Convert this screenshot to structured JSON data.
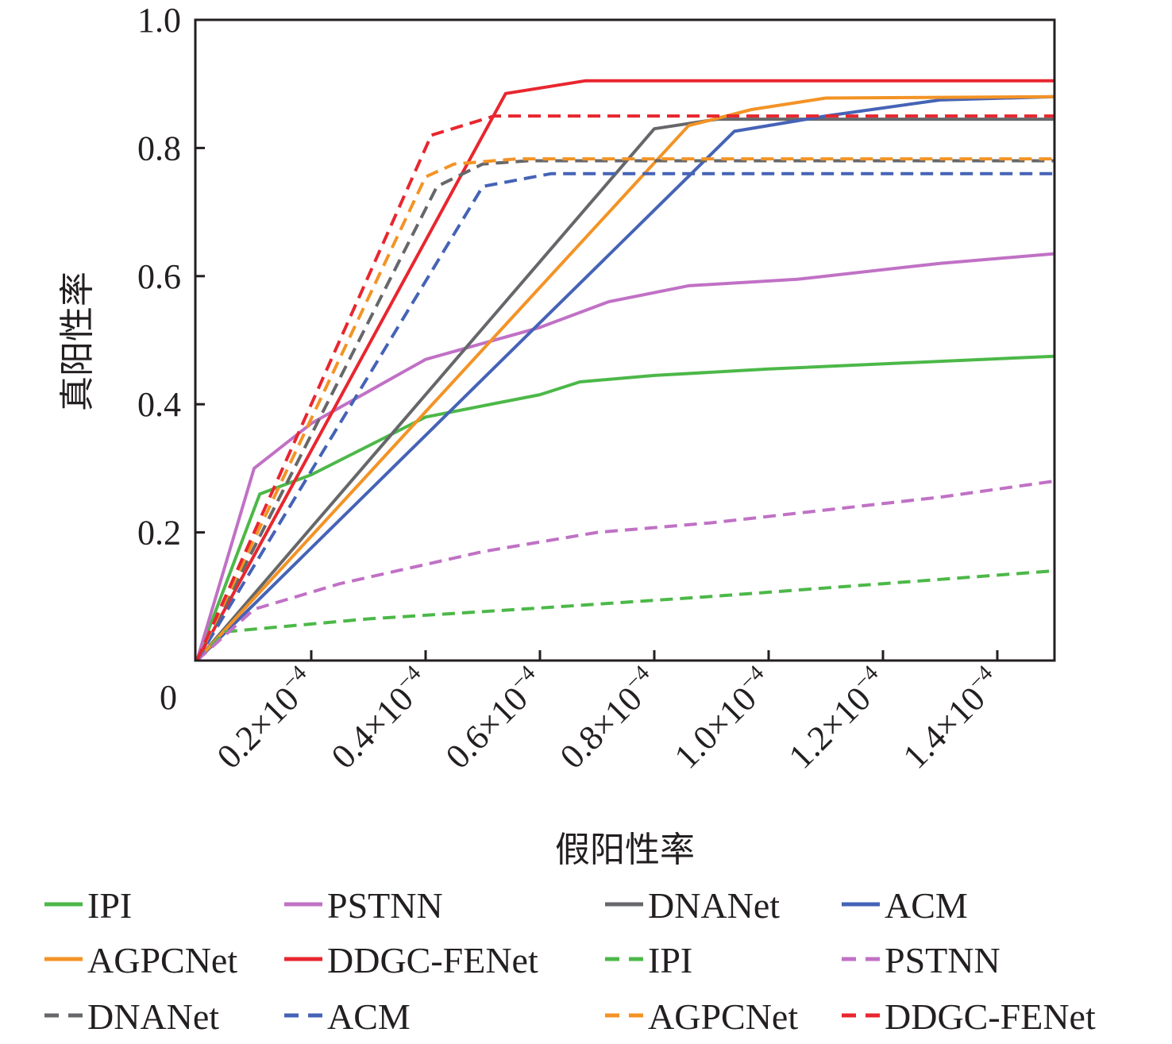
{
  "chart_data": {
    "type": "line",
    "title": "",
    "xlabel": "假阳性率",
    "ylabel": "真阳性率",
    "x_unit_note": "×10^-4",
    "xlim": [
      0,
      1.5
    ],
    "ylim": [
      0,
      1.0
    ],
    "grid": false,
    "legend_position": "bottom",
    "x_ticks": [
      {
        "value": 0.2,
        "label": "0.2×10",
        "exp": "−4"
      },
      {
        "value": 0.4,
        "label": "0.4×10",
        "exp": "−4"
      },
      {
        "value": 0.6,
        "label": "0.6×10",
        "exp": "−4"
      },
      {
        "value": 0.8,
        "label": "0.8×10",
        "exp": "−4"
      },
      {
        "value": 1.0,
        "label": "1.0×10",
        "exp": "−4"
      },
      {
        "value": 1.2,
        "label": "1.2×10",
        "exp": "−4"
      },
      {
        "value": 1.4,
        "label": "1.4×10",
        "exp": "−4"
      }
    ],
    "origin_label": "0",
    "y_ticks": [
      {
        "value": 0.2,
        "label": "0.2"
      },
      {
        "value": 0.4,
        "label": "0.4"
      },
      {
        "value": 0.6,
        "label": "0.6"
      },
      {
        "value": 0.8,
        "label": "0.8"
      },
      {
        "value": 1.0,
        "label": "1.0"
      }
    ],
    "series": [
      {
        "name": "IPI",
        "style": "solid",
        "color": "#4cb848",
        "points": [
          [
            0,
            0
          ],
          [
            0.11,
            0.26
          ],
          [
            0.2,
            0.29
          ],
          [
            0.4,
            0.38
          ],
          [
            0.6,
            0.415
          ],
          [
            0.67,
            0.435
          ],
          [
            0.8,
            0.445
          ],
          [
            1.0,
            0.455
          ],
          [
            1.25,
            0.465
          ],
          [
            1.5,
            0.475
          ]
        ]
      },
      {
        "name": "PSTNN",
        "style": "solid",
        "color": "#c071c5",
        "points": [
          [
            0,
            0
          ],
          [
            0.1,
            0.3
          ],
          [
            0.2,
            0.37
          ],
          [
            0.4,
            0.47
          ],
          [
            0.6,
            0.52
          ],
          [
            0.72,
            0.56
          ],
          [
            0.86,
            0.585
          ],
          [
            1.05,
            0.595
          ],
          [
            1.3,
            0.62
          ],
          [
            1.5,
            0.635
          ]
        ]
      },
      {
        "name": "DNANet",
        "style": "solid",
        "color": "#66676a",
        "points": [
          [
            0,
            0
          ],
          [
            0.8,
            0.83
          ],
          [
            0.91,
            0.845
          ],
          [
            1.5,
            0.845
          ]
        ]
      },
      {
        "name": "ACM",
        "style": "solid",
        "color": "#4563b6",
        "points": [
          [
            0,
            0
          ],
          [
            0.94,
            0.826
          ],
          [
            1.1,
            0.85
          ],
          [
            1.3,
            0.875
          ],
          [
            1.5,
            0.88
          ]
        ]
      },
      {
        "name": "AGPCNet",
        "style": "solid",
        "color": "#f39325",
        "points": [
          [
            0,
            0
          ],
          [
            0.86,
            0.835
          ],
          [
            0.97,
            0.86
          ],
          [
            1.1,
            0.878
          ],
          [
            1.5,
            0.88
          ]
        ]
      },
      {
        "name": "DDGC-FENet",
        "style": "solid",
        "color": "#e8262f",
        "points": [
          [
            0,
            0
          ],
          [
            0.54,
            0.885
          ],
          [
            0.68,
            0.905
          ],
          [
            1.5,
            0.905
          ]
        ]
      },
      {
        "name": "IPI",
        "style": "dashed",
        "color": "#4cb848",
        "points": [
          [
            0,
            0
          ],
          [
            0.05,
            0.045
          ],
          [
            0.3,
            0.065
          ],
          [
            0.6,
            0.082
          ],
          [
            0.9,
            0.1
          ],
          [
            1.2,
            0.12
          ],
          [
            1.5,
            0.14
          ]
        ]
      },
      {
        "name": "PSTNN",
        "style": "dashed",
        "color": "#c071c5",
        "points": [
          [
            0,
            0
          ],
          [
            0.1,
            0.08
          ],
          [
            0.25,
            0.12
          ],
          [
            0.5,
            0.17
          ],
          [
            0.7,
            0.2
          ],
          [
            0.9,
            0.215
          ],
          [
            1.1,
            0.235
          ],
          [
            1.3,
            0.255
          ],
          [
            1.5,
            0.28
          ]
        ]
      },
      {
        "name": "DNANet",
        "style": "dashed",
        "color": "#66676a",
        "points": [
          [
            0,
            0
          ],
          [
            0.42,
            0.74
          ],
          [
            0.5,
            0.775
          ],
          [
            0.58,
            0.78
          ],
          [
            1.5,
            0.78
          ]
        ]
      },
      {
        "name": "ACM",
        "style": "dashed",
        "color": "#4563b6",
        "points": [
          [
            0,
            0
          ],
          [
            0.5,
            0.74
          ],
          [
            0.62,
            0.76
          ],
          [
            1.5,
            0.76
          ]
        ]
      },
      {
        "name": "AGPCNet",
        "style": "dashed",
        "color": "#f39325",
        "points": [
          [
            0,
            0
          ],
          [
            0.4,
            0.755
          ],
          [
            0.45,
            0.775
          ],
          [
            0.56,
            0.783
          ],
          [
            1.5,
            0.783
          ]
        ]
      },
      {
        "name": "DDGC-FENet",
        "style": "dashed",
        "color": "#e8262f",
        "points": [
          [
            0,
            0
          ],
          [
            0.41,
            0.82
          ],
          [
            0.52,
            0.85
          ],
          [
            1.5,
            0.85
          ]
        ]
      }
    ]
  }
}
